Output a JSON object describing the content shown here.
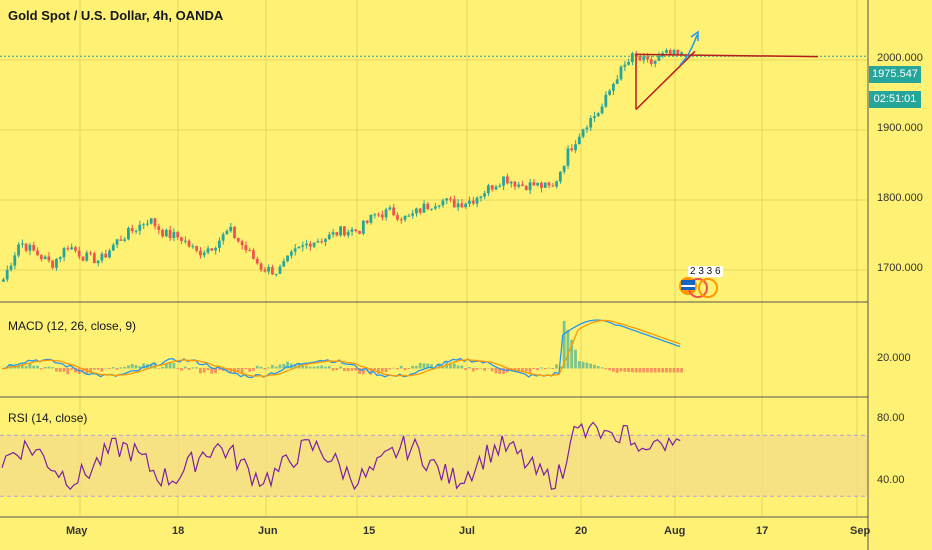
{
  "chart_data": {
    "title": "Gold Spot / U.S. Dollar, 4h, OANDA",
    "type": "candlestick",
    "x_ticks": [
      "May",
      "18",
      "Jun",
      "15",
      "Jul",
      "20",
      "Aug",
      "17",
      "Sep"
    ],
    "price_panel": {
      "y_ticks": [
        "2000.000",
        "1900.000",
        "1800.000",
        "1700.000"
      ],
      "ylim": [
        1650,
        2050
      ],
      "last_price": "1975.547",
      "countdown": "02:51:01",
      "approx_closes": [
        1680,
        1730,
        1715,
        1700,
        1725,
        1710,
        1705,
        1730,
        1745,
        1760,
        1740,
        1735,
        1715,
        1725,
        1745,
        1720,
        1695,
        1690,
        1715,
        1730,
        1735,
        1745,
        1745,
        1765,
        1770,
        1760,
        1775,
        1785,
        1780,
        1785,
        1800,
        1815,
        1805,
        1805,
        1800,
        1850,
        1885,
        1905,
        1950,
        1975,
        1965,
        1978,
        1976
      ],
      "trendlines": [
        {
          "from": [
            "Jul 27",
            1978
          ],
          "to": [
            "Aug 28",
            1975
          ]
        },
        {
          "from": [
            "Jul 27",
            1905
          ],
          "to": [
            "Aug 5",
            1982
          ]
        },
        {
          "from": [
            "Jul 27",
            1978
          ],
          "to": [
            "Jul 27",
            1905
          ]
        }
      ]
    },
    "macd_panel": {
      "label": "MACD (12, 26, close, 9)",
      "y_ticks": [
        "20.000"
      ]
    },
    "rsi_panel": {
      "label": "RSI (14, close)",
      "y_ticks": [
        "80.00",
        "40.00"
      ],
      "band": [
        30,
        70
      ]
    },
    "event_markers": {
      "values": "2 3 3 6"
    },
    "colors": {
      "background": "#fff174",
      "up": "#26a69a",
      "down": "#ef5350",
      "macd": "#2196f3",
      "signal": "#ff9800",
      "rsi": "#7b1fa2",
      "trendline": "#b71c1c"
    }
  }
}
